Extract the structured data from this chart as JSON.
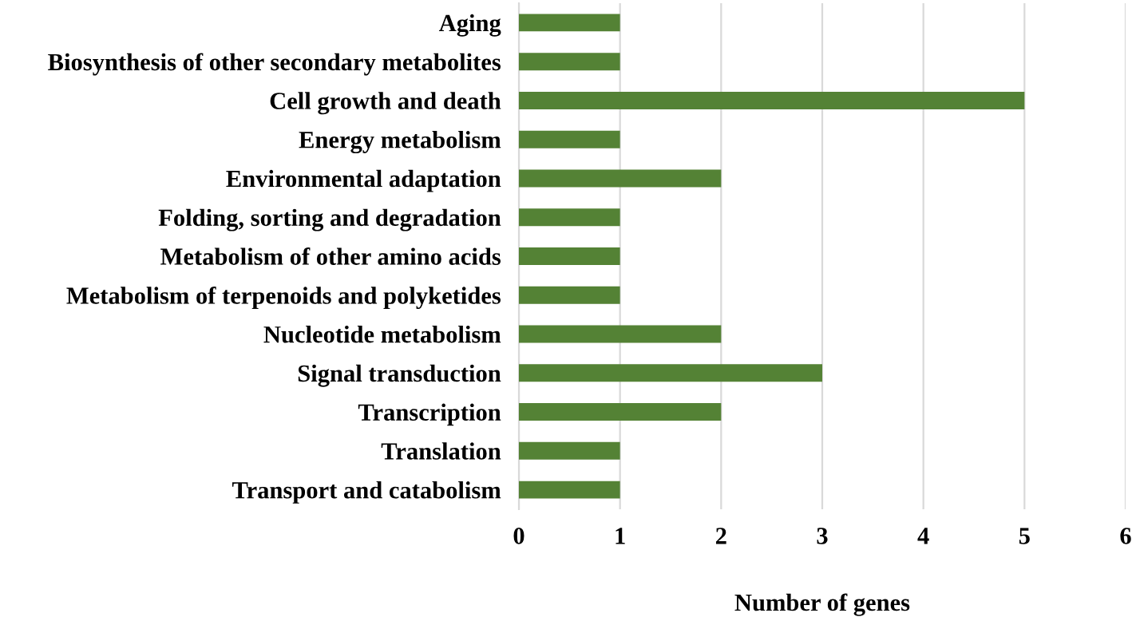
{
  "chart_data": {
    "type": "bar",
    "orientation": "horizontal",
    "xlabel": "Number of genes",
    "categories": [
      "Aging",
      "Biosynthesis of other secondary metabolites",
      "Cell growth and death",
      "Energy metabolism",
      "Environmental adaptation",
      "Folding, sorting and degradation",
      "Metabolism of other amino acids",
      "Metabolism of terpenoids and polyketides",
      "Nucleotide metabolism",
      "Signal transduction",
      "Transcription",
      "Translation",
      "Transport and catabolism"
    ],
    "values": [
      1,
      1,
      5,
      1,
      2,
      1,
      1,
      1,
      2,
      3,
      2,
      1,
      1
    ],
    "color": "#548235",
    "xlim": [
      0,
      6
    ],
    "xticks": [
      0,
      1,
      2,
      3,
      4,
      5,
      6
    ],
    "grid": "x"
  }
}
